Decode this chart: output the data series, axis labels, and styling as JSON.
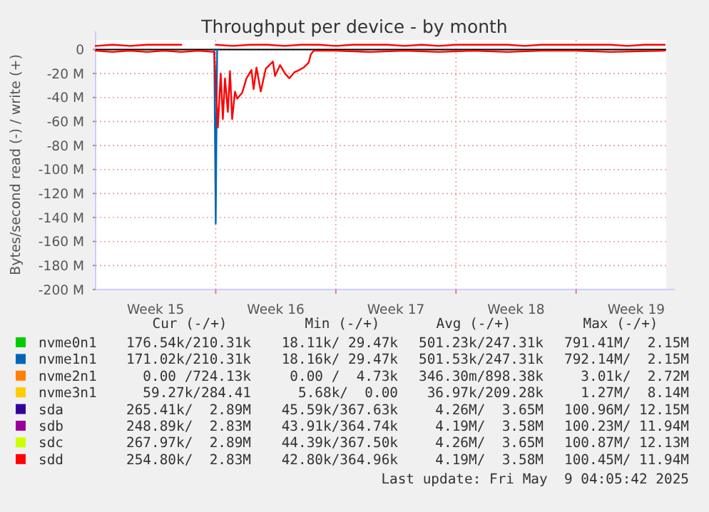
{
  "chart_data": {
    "type": "line",
    "title": "Throughput per device - by month",
    "ylabel": "Bytes/second read (-) / write (+)",
    "xlim": [
      "2025-04-07",
      "2025-05-10T06:00"
    ],
    "xticks": [
      {
        "value": "2025-04-10T12:00",
        "label": "Week 15"
      },
      {
        "value": "2025-04-14",
        "label": null
      },
      {
        "value": "2025-04-17T12:00",
        "label": "Week 16"
      },
      {
        "value": "2025-04-21",
        "label": null
      },
      {
        "value": "2025-04-24T12:00",
        "label": "Week 17"
      },
      {
        "value": "2025-04-28",
        "label": null
      },
      {
        "value": "2025-05-01T12:00",
        "label": "Week 18"
      },
      {
        "value": "2025-05-05",
        "label": null
      },
      {
        "value": "2025-05-08T12:00",
        "label": "Week 19"
      }
    ],
    "ylim": [
      -200,
      8
    ],
    "yticks": [
      0,
      {
        "value": -20,
        "label": "-20 M"
      },
      {
        "value": -40,
        "label": "-40 M"
      },
      {
        "value": -60,
        "label": "-60 M"
      },
      {
        "value": -80,
        "label": "-80 M"
      },
      {
        "value": -100,
        "label": "-100 M"
      },
      {
        "value": -120,
        "label": "-120 M"
      },
      {
        "value": -140,
        "label": "-140 M"
      },
      {
        "value": -160,
        "label": "-160 M"
      },
      {
        "value": -180,
        "label": "-180 M"
      },
      {
        "value": -200,
        "label": "-200 M"
      }
    ],
    "grid": true,
    "legend": "bottom",
    "marker": "none",
    "line_style": "solid",
    "ref_lines": [
      {
        "axis": "y",
        "value": 0,
        "color": "#000000"
      }
    ],
    "x": [
      "2025-04-07",
      "2025-04-08",
      "2025-04-09",
      "2025-04-10",
      "2025-04-11",
      "2025-04-12",
      "2025-04-13",
      "2025-04-14",
      "2025-04-15",
      "2025-04-16",
      "2025-04-17",
      "2025-04-18",
      "2025-04-19",
      "2025-04-20",
      "2025-04-21",
      "2025-04-22",
      "2025-04-23",
      "2025-04-24",
      "2025-04-25",
      "2025-04-26",
      "2025-04-27",
      "2025-04-28",
      "2025-04-29",
      "2025-04-30",
      "2025-05-01",
      "2025-05-02",
      "2025-05-03",
      "2025-05-04",
      "2025-05-05",
      "2025-05-06",
      "2025-05-07",
      "2025-05-08",
      "2025-05-09",
      "2025-05-10T04:00"
    ],
    "series": [
      {
        "color": "#0066b3",
        "x": [
          "2025-04-13T22:00",
          "2025-04-14T00:00",
          "2025-04-14T02:00"
        ],
        "values": [
          0,
          -145,
          0
        ]
      },
      {
        "color": "#ff0000",
        "x": [
          "2025-04-07",
          "2025-04-08",
          "2025-04-09",
          "2025-04-10",
          "2025-04-11",
          "2025-04-12",
          "2025-04-13",
          "2025-04-13T22:00",
          "2025-04-14T03:00",
          "2025-04-14T07:00",
          "2025-04-14T10:00",
          "2025-04-14T13:00",
          "2025-04-14T17:00",
          "2025-04-14T20:00",
          "2025-04-14T23:00",
          "2025-04-15T03:00",
          "2025-04-15T06:00",
          "2025-04-15T13:00",
          "2025-04-15T19:00",
          "2025-04-16T02:00",
          "2025-04-16T05:00",
          "2025-04-16T09:00",
          "2025-04-16T15:00",
          "2025-04-16T22:00",
          "2025-04-17T08:00",
          "2025-04-17T11:00",
          "2025-04-17T18:00",
          "2025-04-18T01:00",
          "2025-04-18T07:00",
          "2025-04-18T14:00",
          "2025-04-18T21:00",
          "2025-04-19T03:00",
          "2025-04-19T10:00",
          "2025-04-19T13:00",
          "2025-04-19T17:00",
          "2025-04-21",
          "2025-04-23",
          "2025-04-25",
          "2025-04-27",
          "2025-04-29",
          "2025-05-01",
          "2025-05-03",
          "2025-05-05",
          "2025-05-07",
          "2025-05-10T04:00"
        ],
        "values": [
          -1,
          -2,
          -1,
          -2,
          -1,
          -2,
          -1,
          -2,
          -65,
          -20,
          -58,
          -24,
          -52,
          -18,
          -58,
          -35,
          -41,
          -36,
          -24,
          -17,
          -33,
          -15,
          -35,
          -16,
          -10,
          -22,
          -13,
          -20,
          -24,
          -19,
          -17,
          -15,
          -11,
          -4,
          -1,
          -1,
          -2,
          -1,
          -2,
          -1,
          -2,
          -1,
          -1,
          -2,
          -1
        ]
      },
      {
        "name": "nvme0n1",
        "color": "#00cc00",
        "values": [
          null,
          null,
          null,
          null,
          null,
          null,
          null,
          null,
          null,
          null,
          null,
          null,
          null,
          null,
          null,
          null,
          null,
          null,
          null,
          null,
          null,
          null,
          null,
          null,
          null,
          null,
          null,
          null,
          null,
          null,
          null,
          null,
          null,
          null
        ]
      },
      {
        "name": "nvme1n1",
        "color": "#0066b3",
        "values": [
          null,
          null,
          null,
          null,
          null,
          null,
          null,
          null,
          null,
          null,
          null,
          null,
          null,
          null,
          null,
          null,
          null,
          null,
          null,
          null,
          null,
          null,
          null,
          null,
          null,
          null,
          null,
          null,
          null,
          null,
          null,
          null,
          null,
          null
        ]
      },
      {
        "name": "nvme2n1",
        "color": "#ff8000",
        "values": [
          null,
          null,
          null,
          null,
          null,
          null,
          null,
          null,
          null,
          null,
          null,
          null,
          null,
          null,
          null,
          null,
          null,
          null,
          null,
          null,
          null,
          null,
          null,
          null,
          null,
          null,
          null,
          null,
          null,
          null,
          null,
          null,
          null,
          null
        ]
      },
      {
        "name": "nvme3n1",
        "color": "#ffcc00",
        "values": [
          null,
          null,
          null,
          null,
          null,
          null,
          null,
          null,
          null,
          null,
          null,
          null,
          null,
          null,
          null,
          null,
          null,
          null,
          null,
          null,
          null,
          null,
          null,
          null,
          null,
          null,
          null,
          null,
          null,
          null,
          null,
          null,
          null,
          null
        ]
      },
      {
        "name": "sda",
        "color": "#330099",
        "values": [
          null,
          null,
          null,
          null,
          null,
          null,
          null,
          null,
          null,
          null,
          null,
          null,
          null,
          null,
          null,
          null,
          null,
          null,
          null,
          null,
          null,
          null,
          null,
          null,
          null,
          null,
          null,
          null,
          null,
          null,
          null,
          null,
          null,
          null
        ]
      },
      {
        "name": "sdb",
        "color": "#990099",
        "values": [
          null,
          null,
          null,
          null,
          null,
          null,
          null,
          null,
          null,
          null,
          null,
          null,
          null,
          null,
          null,
          null,
          null,
          null,
          null,
          null,
          null,
          null,
          null,
          null,
          null,
          null,
          null,
          null,
          null,
          null,
          null,
          null,
          null,
          null
        ]
      },
      {
        "name": "sdc",
        "color": "#ccff00",
        "values": [
          null,
          null,
          null,
          null,
          null,
          null,
          null,
          null,
          null,
          null,
          null,
          null,
          null,
          null,
          null,
          null,
          null,
          null,
          null,
          null,
          null,
          null,
          null,
          null,
          null,
          null,
          null,
          null,
          null,
          null,
          null,
          null,
          null,
          null
        ]
      },
      {
        "name": "sdd",
        "color": "#ff0000",
        "values": [
          3,
          4,
          3,
          4,
          4,
          4,
          null,
          4,
          3,
          4,
          4,
          3,
          4,
          4,
          3,
          4,
          4,
          4,
          3,
          4,
          3,
          4,
          4,
          4,
          4,
          3,
          4,
          4,
          4,
          4,
          4,
          3,
          4,
          4
        ]
      }
    ],
    "annotations": [
      "Cur (-/+)",
      "Min (-/+)",
      "Avg (-/+)",
      "Max (-/+)",
      "176.54k/210.31k",
      "18.11k/ 29.47k",
      "501.23k/247.31k",
      "791.41M/  2.15M",
      "171.02k/210.31k",
      "18.16k/ 29.47k",
      "501.53k/247.31k",
      "792.14M/  2.15M",
      "0.00 /724.13k",
      "0.00 /  4.73k",
      "346.30m/898.38k",
      "3.01k/  2.72M",
      "59.27k/284.41",
      "5.68k/  0.00",
      "36.97k/209.28k",
      "1.27M/  8.14M",
      "265.41k/  2.89M",
      "45.59k/367.63k",
      "4.26M/  3.65M",
      "100.96M/ 12.15M",
      "248.89k/  2.83M",
      "43.91k/364.74k",
      "4.19M/  3.58M",
      "100.23M/ 11.94M",
      "267.97k/  2.89M",
      "44.39k/367.50k",
      "4.26M/  3.65M",
      "100.87M/ 12.13M",
      "254.80k/  2.83M",
      "42.80k/364.96k",
      "4.19M/  3.58M",
      "100.45M/ 11.94M",
      "Last update: Fri May  9 04:05:42 2025"
    ]
  }
}
